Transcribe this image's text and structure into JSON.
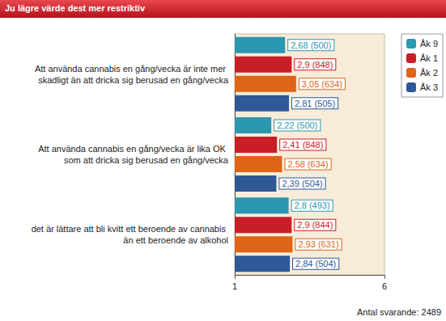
{
  "chart_data": {
    "type": "bar",
    "title": "Ju lägre värde dest mer restriktiv",
    "annotation": "Antal svarande: 2489",
    "orientation": "horizontal",
    "categories": [
      "Att använda cannabis en gång/vecka är inte mer skadligt än att dricka sig berusad en gång/vecka",
      "Att använda cannabis en gång/vecka är lika OK som att dricka sig berusad en gång/vecka",
      "det är lättare att bli kvitt ett beroende av cannabis än ett beroende av alkohol"
    ],
    "series": [
      {
        "name": "Åk 9",
        "color": "#2b97b0",
        "values": [
          2.68,
          2.22,
          2.8
        ],
        "value_labels": [
          "2,68 (500)",
          "2,22 (500)",
          "2,8 (493)"
        ]
      },
      {
        "name": "Åk 1",
        "color": "#c81e28",
        "values": [
          2.9,
          2.41,
          2.9
        ],
        "value_labels": [
          "2,9 (848)",
          "2,41 (848)",
          "2,9 (844)"
        ]
      },
      {
        "name": "Åk 2",
        "color": "#de6418",
        "values": [
          3.05,
          2.58,
          2.93
        ],
        "value_labels": [
          "3,05 (634)",
          "2,58 (634)",
          "2,93 (631)"
        ]
      },
      {
        "name": "Åk 3",
        "color": "#2e5896",
        "values": [
          2.81,
          2.39,
          2.84
        ],
        "value_labels": [
          "2,81 (505)",
          "2,39 (504)",
          "2,84 (504)"
        ]
      }
    ],
    "xlim": [
      1,
      6
    ],
    "xticks": [
      1,
      6
    ],
    "grid": false,
    "legend": "top-right",
    "data_labels": true
  }
}
